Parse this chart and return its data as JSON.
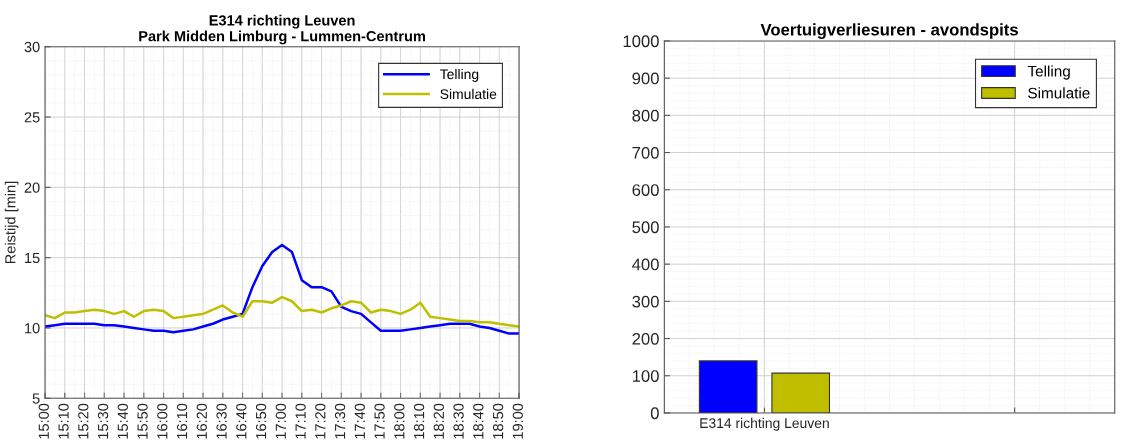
{
  "chart_data": [
    {
      "type": "line",
      "title": "E314 richting Leuven\nPark Midden Limburg - Lummen-Centrum",
      "ylabel": "Reistijd [min]",
      "x": [
        15,
        15.0833,
        15.1667,
        15.25,
        15.3333,
        15.4167,
        15.5,
        15.5833,
        15.6667,
        15.75,
        15.8333,
        15.9167,
        16,
        16.0833,
        16.1667,
        16.25,
        16.3333,
        16.4167,
        16.5,
        16.5833,
        16.6667,
        16.75,
        16.8333,
        16.9167,
        17,
        17.0833,
        17.1667,
        17.25,
        17.3333,
        17.4167,
        17.5,
        17.5833,
        17.6667,
        17.75,
        17.8333,
        17.9167,
        18,
        18.0833,
        18.1667,
        18.25,
        18.3333,
        18.4167,
        18.5,
        18.5833,
        18.6667,
        18.75,
        18.8333,
        18.9167,
        19
      ],
      "series": [
        {
          "name": "Telling",
          "color": "#0000ff",
          "values": [
            10.1,
            10.2,
            10.3,
            10.3,
            10.3,
            10.3,
            10.2,
            10.2,
            10.1,
            10.0,
            9.9,
            9.8,
            9.8,
            9.7,
            9.8,
            9.9,
            10.1,
            10.3,
            10.6,
            10.8,
            11.0,
            12.9,
            14.4,
            15.4,
            15.9,
            15.4,
            13.4,
            12.9,
            12.9,
            12.6,
            11.5,
            11.2,
            11.0,
            10.4,
            9.8,
            9.8,
            9.8,
            9.9,
            10.0,
            10.1,
            10.2,
            10.3,
            10.3,
            10.3,
            10.1,
            10.0,
            9.8,
            9.6,
            9.6
          ]
        },
        {
          "name": "Simulatie",
          "color": "#bfbf00",
          "values": [
            10.9,
            10.7,
            11.1,
            11.1,
            11.2,
            11.3,
            11.2,
            11.0,
            11.2,
            10.8,
            11.2,
            11.3,
            11.2,
            10.7,
            10.8,
            10.9,
            11.0,
            11.3,
            11.6,
            11.1,
            10.8,
            11.9,
            11.9,
            11.8,
            12.2,
            11.9,
            11.2,
            11.3,
            11.1,
            11.4,
            11.6,
            11.9,
            11.8,
            11.1,
            11.3,
            11.2,
            11.0,
            11.3,
            11.8,
            10.8,
            10.7,
            10.6,
            10.5,
            10.5,
            10.4,
            10.4,
            10.3,
            10.2,
            10.1
          ]
        }
      ],
      "xlim": [
        15,
        19
      ],
      "ylim": [
        5,
        30
      ],
      "xticks": [
        {
          "value": 15,
          "label": "15:00"
        },
        {
          "value": 15.1667,
          "label": "15:10"
        },
        {
          "value": 15.3333,
          "label": "15:20"
        },
        {
          "value": 15.5,
          "label": "15:30"
        },
        {
          "value": 15.6667,
          "label": "15:40"
        },
        {
          "value": 15.8333,
          "label": "15:50"
        },
        {
          "value": 16,
          "label": "16:00"
        },
        {
          "value": 16.1667,
          "label": "16:10"
        },
        {
          "value": 16.3333,
          "label": "16:20"
        },
        {
          "value": 16.5,
          "label": "16:30"
        },
        {
          "value": 16.6667,
          "label": "16:40"
        },
        {
          "value": 16.8333,
          "label": "16:50"
        },
        {
          "value": 17,
          "label": "17:00"
        },
        {
          "value": 17.1667,
          "label": "17:10"
        },
        {
          "value": 17.3333,
          "label": "17:20"
        },
        {
          "value": 17.5,
          "label": "17:30"
        },
        {
          "value": 17.6667,
          "label": "17:40"
        },
        {
          "value": 17.8333,
          "label": "17:50"
        },
        {
          "value": 18,
          "label": "18:00"
        },
        {
          "value": 18.1667,
          "label": "18:10"
        },
        {
          "value": 18.3333,
          "label": "18:20"
        },
        {
          "value": 18.5,
          "label": "18:30"
        },
        {
          "value": 18.6667,
          "label": "18:40"
        },
        {
          "value": 18.8333,
          "label": "18:50"
        },
        {
          "value": 19,
          "label": "19:00"
        }
      ],
      "yticks": [
        5,
        10,
        15,
        20,
        25,
        30
      ],
      "grid": true,
      "legend": "top right"
    },
    {
      "type": "bar",
      "title": "Voertuigverliesuren - avondspits",
      "categories": [
        "E314 richting Leuven",
        null
      ],
      "series": [
        {
          "name": "Telling",
          "color": "#0000ff",
          "values": [
            140,
            null
          ]
        },
        {
          "name": "Simulatie",
          "color": "#bfbf00",
          "values": [
            107,
            null
          ]
        }
      ],
      "ylim": [
        0,
        1000
      ],
      "yticks": [
        0,
        100,
        200,
        300,
        400,
        500,
        600,
        700,
        800,
        900,
        1000
      ],
      "grid": true,
      "legend": "top right"
    }
  ]
}
